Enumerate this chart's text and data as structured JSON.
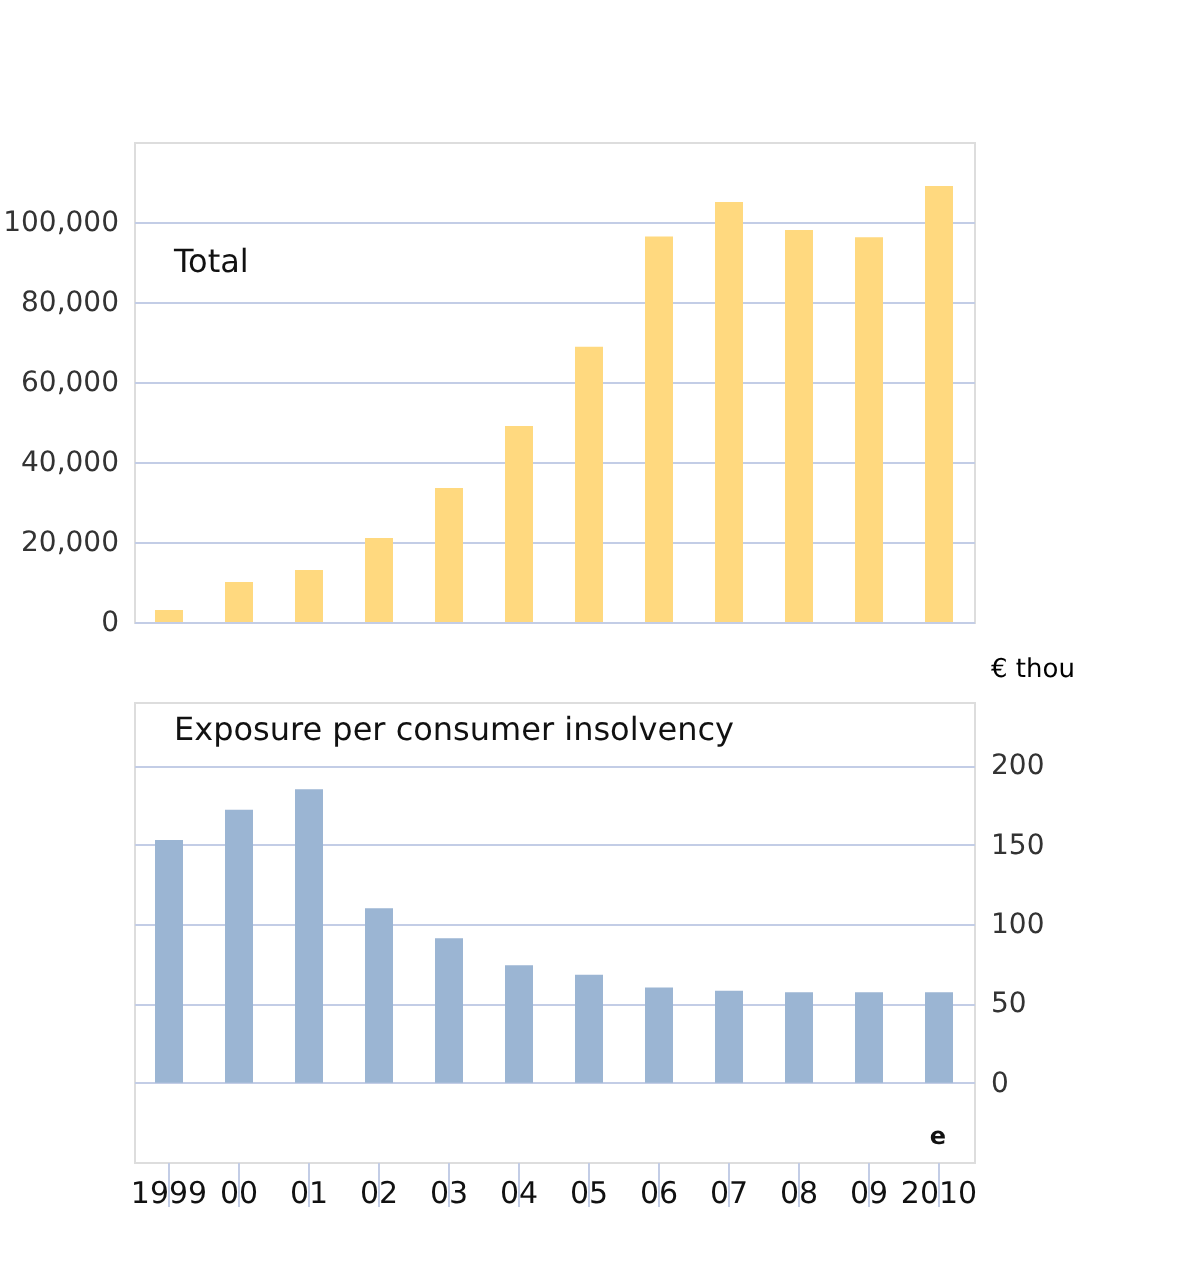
{
  "chart_data": [
    {
      "type": "bar",
      "title": "Total",
      "categories": [
        "1999",
        "00",
        "01",
        "02",
        "03",
        "04",
        "05",
        "06",
        "07",
        "08",
        "09",
        "2010"
      ],
      "series": [
        {
          "color": "#ffd97f",
          "values": [
            3000,
            10000,
            13000,
            21000,
            33500,
            49000,
            68800,
            96400,
            105000,
            98000,
            96200,
            109000
          ]
        }
      ],
      "ylim": [
        0,
        120000
      ],
      "yticks": [
        {
          "value": 0,
          "label": "0"
        },
        {
          "value": 20000,
          "label": "20,000"
        },
        {
          "value": 40000,
          "label": "40,000"
        },
        {
          "value": 60000,
          "label": "60,000"
        },
        {
          "value": 80000,
          "label": "80,000"
        },
        {
          "value": 100000,
          "label": "100,000"
        }
      ],
      "grid": "y",
      "tick_labels": "y"
    },
    {
      "type": "bar",
      "title": "Exposure per consumer insolvency",
      "ylabel": "€ thou",
      "categories": [
        "1999",
        "00",
        "01",
        "02",
        "03",
        "04",
        "05",
        "06",
        "07",
        "08",
        "09",
        "2010"
      ],
      "series": [
        {
          "color": "#9bb5d3",
          "values": [
            153,
            172,
            185,
            110,
            91,
            74,
            68,
            60,
            58,
            57,
            57,
            57
          ]
        }
      ],
      "ylim": [
        -50,
        240
      ],
      "yticks": [
        0,
        50,
        100,
        150,
        200
      ],
      "grid": "y",
      "annotations": [
        "e"
      ]
    }
  ]
}
